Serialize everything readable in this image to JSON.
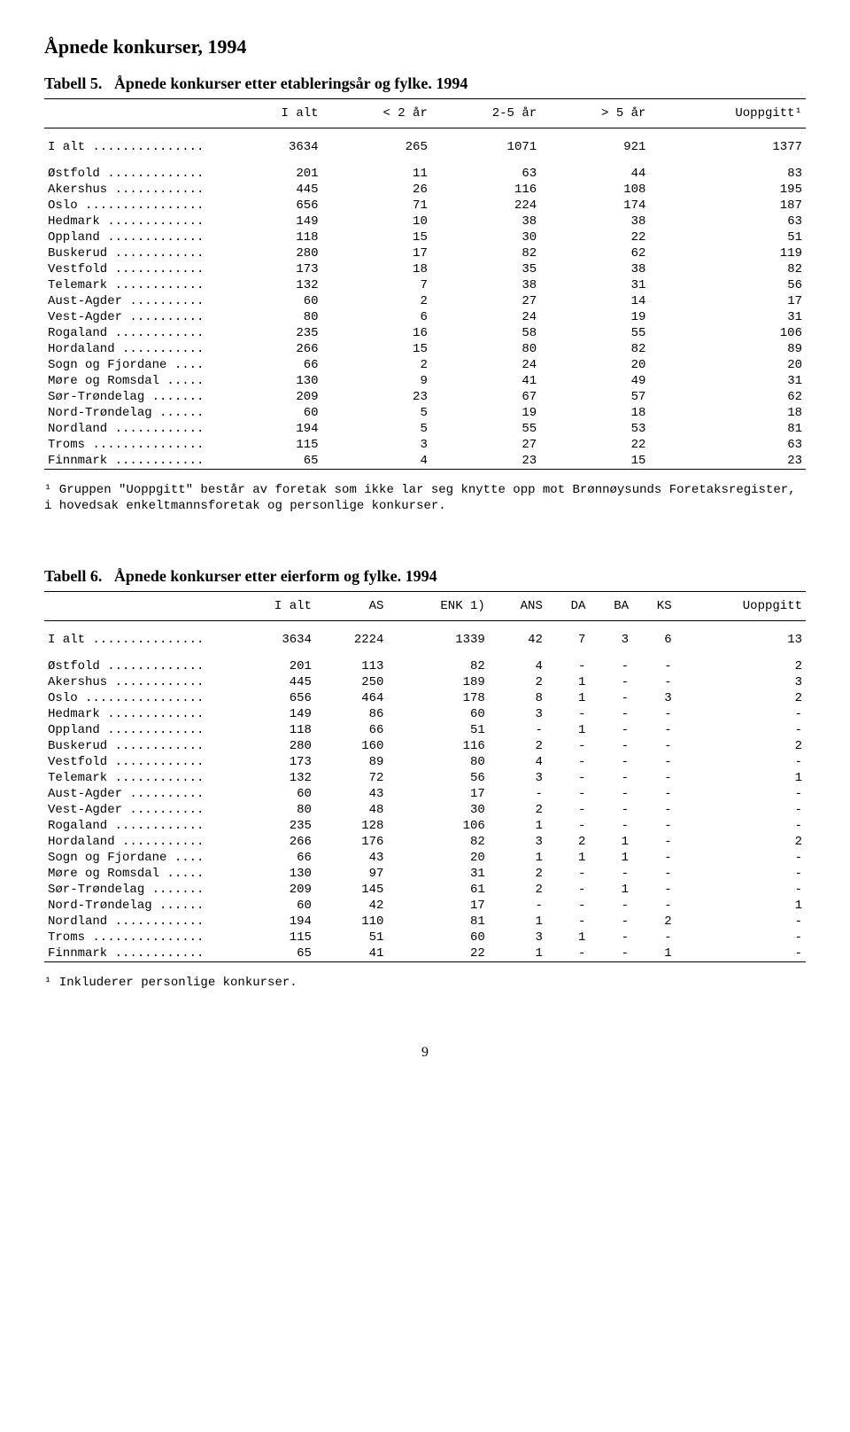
{
  "page_title": "Åpnede konkurser, 1994",
  "page_number": "9",
  "table5": {
    "heading_prefix": "Tabell 5.",
    "heading_title": "Åpnede konkurser etter etableringsår og fylke. 1994",
    "columns": [
      "I alt",
      "< 2 år",
      "2-5 år",
      "> 5 år",
      "Uoppgitt¹"
    ],
    "total_label": "I alt",
    "total_row": [
      "3634",
      "265",
      "1071",
      "921",
      "1377"
    ],
    "rows": [
      {
        "label": "Østfold",
        "v": [
          "201",
          "11",
          "63",
          "44",
          "83"
        ]
      },
      {
        "label": "Akershus",
        "v": [
          "445",
          "26",
          "116",
          "108",
          "195"
        ]
      },
      {
        "label": "Oslo",
        "v": [
          "656",
          "71",
          "224",
          "174",
          "187"
        ]
      },
      {
        "label": "Hedmark",
        "v": [
          "149",
          "10",
          "38",
          "38",
          "63"
        ]
      },
      {
        "label": "Oppland",
        "v": [
          "118",
          "15",
          "30",
          "22",
          "51"
        ]
      },
      {
        "label": "Buskerud",
        "v": [
          "280",
          "17",
          "82",
          "62",
          "119"
        ]
      },
      {
        "label": "Vestfold",
        "v": [
          "173",
          "18",
          "35",
          "38",
          "82"
        ]
      },
      {
        "label": "Telemark",
        "v": [
          "132",
          "7",
          "38",
          "31",
          "56"
        ]
      },
      {
        "label": "Aust-Agder",
        "v": [
          "60",
          "2",
          "27",
          "14",
          "17"
        ]
      },
      {
        "label": "Vest-Agder",
        "v": [
          "80",
          "6",
          "24",
          "19",
          "31"
        ]
      },
      {
        "label": "Rogaland",
        "v": [
          "235",
          "16",
          "58",
          "55",
          "106"
        ]
      },
      {
        "label": "Hordaland",
        "v": [
          "266",
          "15",
          "80",
          "82",
          "89"
        ]
      },
      {
        "label": "Sogn og Fjordane",
        "v": [
          "66",
          "2",
          "24",
          "20",
          "20"
        ]
      },
      {
        "label": "Møre og Romsdal",
        "v": [
          "130",
          "9",
          "41",
          "49",
          "31"
        ]
      },
      {
        "label": "Sør-Trøndelag",
        "v": [
          "209",
          "23",
          "67",
          "57",
          "62"
        ]
      },
      {
        "label": "Nord-Trøndelag",
        "v": [
          "60",
          "5",
          "19",
          "18",
          "18"
        ]
      },
      {
        "label": "Nordland",
        "v": [
          "194",
          "5",
          "55",
          "53",
          "81"
        ]
      },
      {
        "label": "Troms",
        "v": [
          "115",
          "3",
          "27",
          "22",
          "63"
        ]
      },
      {
        "label": "Finnmark",
        "v": [
          "65",
          "4",
          "23",
          "15",
          "23"
        ]
      }
    ],
    "footnote": "¹ Gruppen \"Uoppgitt\" består av foretak som ikke lar seg knytte opp mot Brønnøysunds Foretaksregister, i hovedsak enkeltmannsforetak og personlige konkurser."
  },
  "table6": {
    "heading_prefix": "Tabell 6.",
    "heading_title": "Åpnede konkurser etter eierform og fylke. 1994",
    "columns": [
      "I alt",
      "AS",
      "ENK 1)",
      "ANS",
      "DA",
      "BA",
      "KS",
      "Uoppgitt"
    ],
    "total_label": "I alt",
    "total_row": [
      "3634",
      "2224",
      "1339",
      "42",
      "7",
      "3",
      "6",
      "13"
    ],
    "rows": [
      {
        "label": "Østfold",
        "v": [
          "201",
          "113",
          "82",
          "4",
          "-",
          "-",
          "-",
          "2"
        ]
      },
      {
        "label": "Akershus",
        "v": [
          "445",
          "250",
          "189",
          "2",
          "1",
          "-",
          "-",
          "3"
        ]
      },
      {
        "label": "Oslo",
        "v": [
          "656",
          "464",
          "178",
          "8",
          "1",
          "-",
          "3",
          "2"
        ]
      },
      {
        "label": "Hedmark",
        "v": [
          "149",
          "86",
          "60",
          "3",
          "-",
          "-",
          "-",
          "-"
        ]
      },
      {
        "label": "Oppland",
        "v": [
          "118",
          "66",
          "51",
          "-",
          "1",
          "-",
          "-",
          "-"
        ]
      },
      {
        "label": "Buskerud",
        "v": [
          "280",
          "160",
          "116",
          "2",
          "-",
          "-",
          "-",
          "2"
        ]
      },
      {
        "label": "Vestfold",
        "v": [
          "173",
          "89",
          "80",
          "4",
          "-",
          "-",
          "-",
          "-"
        ]
      },
      {
        "label": "Telemark",
        "v": [
          "132",
          "72",
          "56",
          "3",
          "-",
          "-",
          "-",
          "1"
        ]
      },
      {
        "label": "Aust-Agder",
        "v": [
          "60",
          "43",
          "17",
          "-",
          "-",
          "-",
          "-",
          "-"
        ]
      },
      {
        "label": "Vest-Agder",
        "v": [
          "80",
          "48",
          "30",
          "2",
          "-",
          "-",
          "-",
          "-"
        ]
      },
      {
        "label": "Rogaland",
        "v": [
          "235",
          "128",
          "106",
          "1",
          "-",
          "-",
          "-",
          "-"
        ]
      },
      {
        "label": "Hordaland",
        "v": [
          "266",
          "176",
          "82",
          "3",
          "2",
          "1",
          "-",
          "2"
        ]
      },
      {
        "label": "Sogn og Fjordane",
        "v": [
          "66",
          "43",
          "20",
          "1",
          "1",
          "1",
          "-",
          "-"
        ]
      },
      {
        "label": "Møre og Romsdal",
        "v": [
          "130",
          "97",
          "31",
          "2",
          "-",
          "-",
          "-",
          "-"
        ]
      },
      {
        "label": "Sør-Trøndelag",
        "v": [
          "209",
          "145",
          "61",
          "2",
          "-",
          "1",
          "-",
          "-"
        ]
      },
      {
        "label": "Nord-Trøndelag",
        "v": [
          "60",
          "42",
          "17",
          "-",
          "-",
          "-",
          "-",
          "1"
        ]
      },
      {
        "label": "Nordland",
        "v": [
          "194",
          "110",
          "81",
          "1",
          "-",
          "-",
          "2",
          "-"
        ]
      },
      {
        "label": "Troms",
        "v": [
          "115",
          "51",
          "60",
          "3",
          "1",
          "-",
          "-",
          "-"
        ]
      },
      {
        "label": "Finnmark",
        "v": [
          "65",
          "41",
          "22",
          "1",
          "-",
          "-",
          "1",
          "-"
        ]
      }
    ],
    "footnote": "¹ Inkluderer personlige konkurser."
  },
  "style": {
    "label_col_width": 200,
    "dot_char": "."
  }
}
